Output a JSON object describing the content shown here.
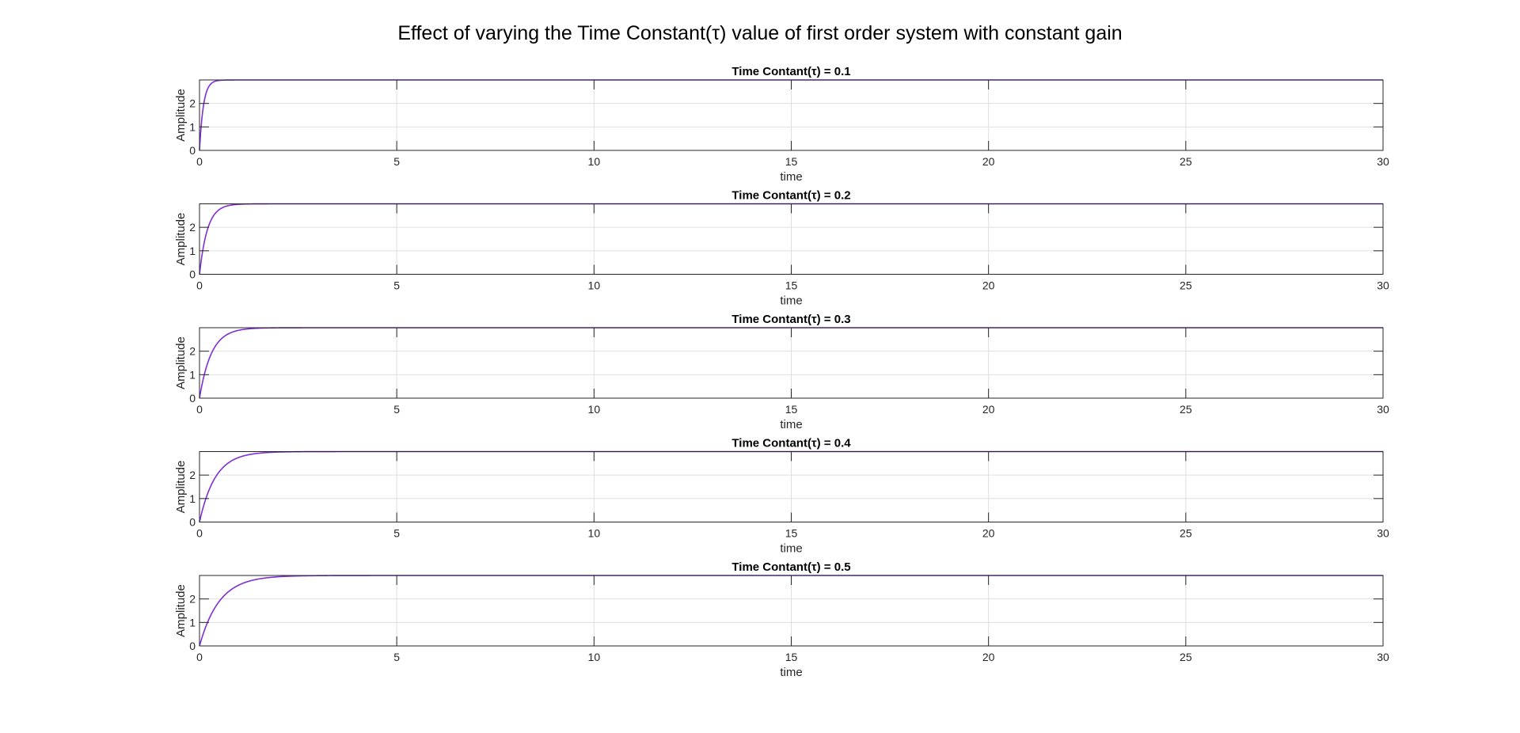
{
  "figure": {
    "title": "Effect of varying the Time Constant(τ) value of first order system with constant gain"
  },
  "colors": {
    "curve": "#7e2fd6",
    "axis": "#262626",
    "grid": "#dfdfdf",
    "background": "#ffffff"
  },
  "chart_data": [
    {
      "type": "line",
      "title": "Time Contant(τ) = 0.1",
      "xlabel": "time",
      "ylabel": "Amplitude",
      "xlim": [
        0,
        30
      ],
      "ylim": [
        0,
        3
      ],
      "xticks": [
        0,
        5,
        10,
        15,
        20,
        25,
        30
      ],
      "yticks": [
        0,
        1,
        2
      ],
      "grid": true,
      "series": [
        {
          "function": "K*(1-exp(-t/tau))",
          "K": 3,
          "tau": 0.1
        }
      ]
    },
    {
      "type": "line",
      "title": "Time Contant(τ) = 0.2",
      "xlabel": "time",
      "ylabel": "Amplitude",
      "xlim": [
        0,
        30
      ],
      "ylim": [
        0,
        3
      ],
      "xticks": [
        0,
        5,
        10,
        15,
        20,
        25,
        30
      ],
      "yticks": [
        0,
        1,
        2
      ],
      "grid": true,
      "series": [
        {
          "function": "K*(1-exp(-t/tau))",
          "K": 3,
          "tau": 0.2
        }
      ]
    },
    {
      "type": "line",
      "title": "Time Contant(τ) = 0.3",
      "xlabel": "time",
      "ylabel": "Amplitude",
      "xlim": [
        0,
        30
      ],
      "ylim": [
        0,
        3
      ],
      "xticks": [
        0,
        5,
        10,
        15,
        20,
        25,
        30
      ],
      "yticks": [
        0,
        1,
        2
      ],
      "grid": true,
      "series": [
        {
          "function": "K*(1-exp(-t/tau))",
          "K": 3,
          "tau": 0.3
        }
      ]
    },
    {
      "type": "line",
      "title": "Time Contant(τ) = 0.4",
      "xlabel": "time",
      "ylabel": "Amplitude",
      "xlim": [
        0,
        30
      ],
      "ylim": [
        0,
        3
      ],
      "xticks": [
        0,
        5,
        10,
        15,
        20,
        25,
        30
      ],
      "yticks": [
        0,
        1,
        2
      ],
      "grid": true,
      "series": [
        {
          "function": "K*(1-exp(-t/tau))",
          "K": 3,
          "tau": 0.4
        }
      ]
    },
    {
      "type": "line",
      "title": "Time Contant(τ) = 0.5",
      "xlabel": "time",
      "ylabel": "Amplitude",
      "xlim": [
        0,
        30
      ],
      "ylim": [
        0,
        3
      ],
      "xticks": [
        0,
        5,
        10,
        15,
        20,
        25,
        30
      ],
      "yticks": [
        0,
        1,
        2
      ],
      "grid": true,
      "series": [
        {
          "function": "K*(1-exp(-t/tau))",
          "K": 3,
          "tau": 0.5
        }
      ]
    }
  ]
}
